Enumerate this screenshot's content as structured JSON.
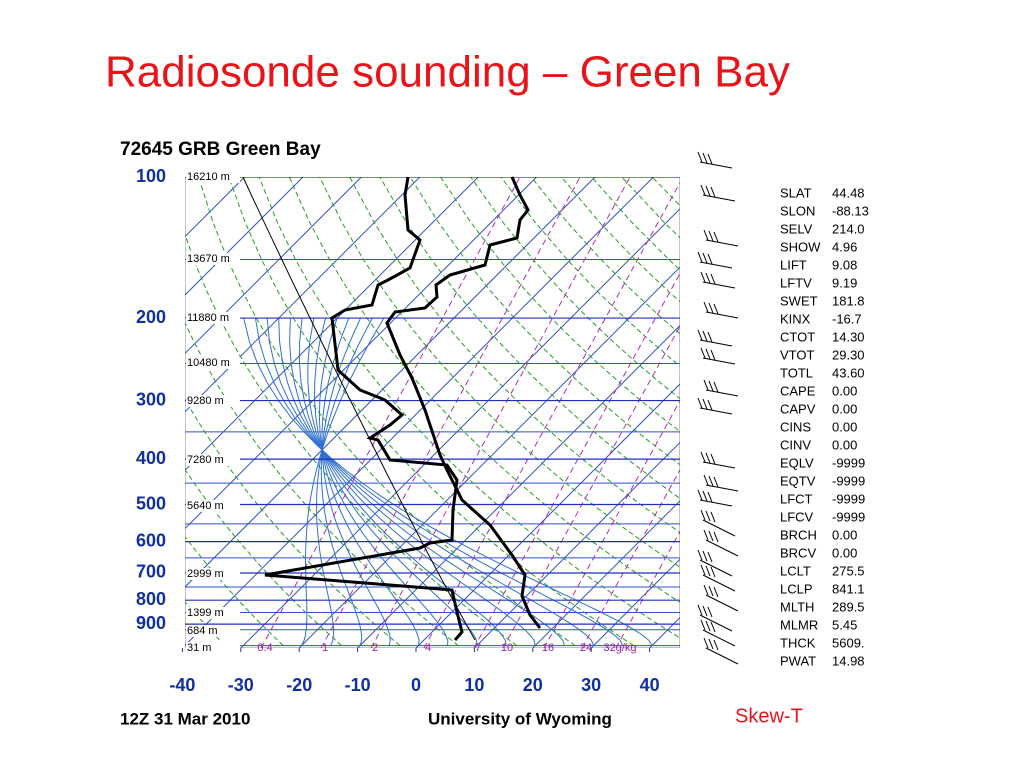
{
  "slide_title": "Radiosonde sounding – Green Bay",
  "diagram": {
    "station": "72645 GRB Green Bay",
    "pressure_ticks": [
      100,
      200,
      300,
      400,
      500,
      600,
      700,
      800,
      900
    ],
    "temperature_ticks": [
      -40,
      -30,
      -20,
      -10,
      0,
      10,
      20,
      30,
      40
    ],
    "height_labels": [
      "16210 m",
      "13670 m",
      "11880 m",
      "10480 m",
      "9280 m",
      "7280 m",
      "5640 m",
      "2999 m",
      "1399 m",
      "684 m",
      "31 m"
    ],
    "mixing_ratio_labels": [
      "0.4",
      "1",
      "2",
      "4",
      "7",
      "10",
      "16",
      "24",
      "32g/kg"
    ],
    "time": "12Z 31 Mar 2010",
    "source": "University of Wyoming"
  },
  "indices": [
    [
      "SLAT",
      "44.48"
    ],
    [
      "SLON",
      "-88.13"
    ],
    [
      "SELV",
      "214.0"
    ],
    [
      "SHOW",
      "4.96"
    ],
    [
      "LIFT",
      "9.08"
    ],
    [
      "LFTV",
      "9.19"
    ],
    [
      "SWET",
      "181.8"
    ],
    [
      "KINX",
      "-16.7"
    ],
    [
      "CTOT",
      "14.30"
    ],
    [
      "VTOT",
      "29.30"
    ],
    [
      "TOTL",
      "43.60"
    ],
    [
      "CAPE",
      "0.00"
    ],
    [
      "CAPV",
      "0.00"
    ],
    [
      "CINS",
      "0.00"
    ],
    [
      "CINV",
      "0.00"
    ],
    [
      "EQLV",
      "-9999"
    ],
    [
      "EQTV",
      "-9999"
    ],
    [
      "LFCT",
      "-9999"
    ],
    [
      "LFCV",
      "-9999"
    ],
    [
      "BRCH",
      "0.00"
    ],
    [
      "BRCV",
      "0.00"
    ],
    [
      "LCLT",
      "275.5"
    ],
    [
      "LCLP",
      "841.1"
    ],
    [
      "MLTH",
      "289.5"
    ],
    [
      "MLMR",
      "5.45"
    ],
    [
      "THCK",
      "5609."
    ],
    [
      "PWAT",
      "14.98"
    ]
  ],
  "caption": "Skew-T"
}
